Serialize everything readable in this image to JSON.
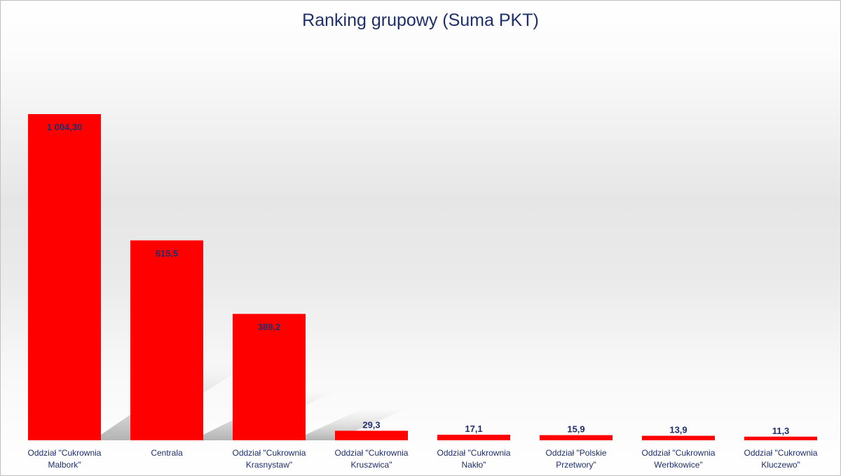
{
  "chart_data": {
    "type": "bar",
    "title": "Ranking grupowy (Suma PKT)",
    "categories": [
      "Oddział \"Cukrownia Malbork\"",
      "Centrala",
      "Oddział \"Cukrownia Krasnystaw\"",
      "Oddział \"Cukrownia Kruszwica\"",
      "Oddział \"Cukrownia Nakło\"",
      "Oddział \"Polskie Przetwory\"",
      "Oddział \"Cukrownia Werbkowice\"",
      "Oddział \"Cukrownia Kluczewo\""
    ],
    "values": [
      1004.3,
      615.5,
      389.2,
      29.3,
      17.1,
      15.9,
      13.9,
      11.3
    ],
    "data_labels": [
      "1 004,30",
      "615,5",
      "389,2",
      "29,3",
      "17,1",
      "15,9",
      "13,9",
      "11,3"
    ],
    "category_labels": [
      [
        "Oddział \"Cukrownia",
        "Malbork\""
      ],
      [
        "Centrala"
      ],
      [
        "Oddział \"Cukrownia",
        "Krasnystaw\""
      ],
      [
        "Oddział \"Cukrownia",
        "Kruszwica\""
      ],
      [
        "Oddział \"Cukrownia",
        "Nakło\""
      ],
      [
        "Oddział \"Polskie",
        "Przetwory\""
      ],
      [
        "Oddział \"Cukrownia",
        "Werbkowice\""
      ],
      [
        "Oddział \"Cukrownia",
        "Kluczewo\""
      ]
    ],
    "xlabel": "",
    "ylabel": "",
    "grid": false,
    "legend": "none",
    "colors": {
      "bar": "#ff0000",
      "text": "#1f2f6b"
    }
  }
}
